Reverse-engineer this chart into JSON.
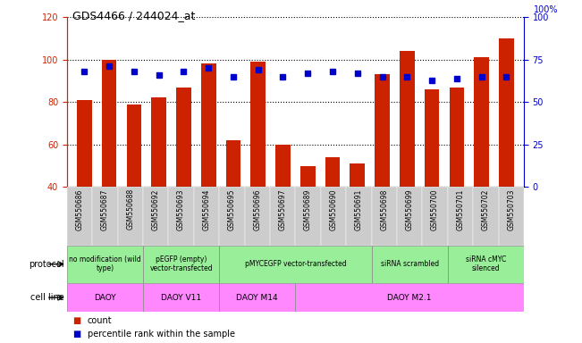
{
  "title": "GDS4466 / 244024_at",
  "samples": [
    "GSM550686",
    "GSM550687",
    "GSM550688",
    "GSM550692",
    "GSM550693",
    "GSM550694",
    "GSM550695",
    "GSM550696",
    "GSM550697",
    "GSM550689",
    "GSM550690",
    "GSM550691",
    "GSM550698",
    "GSM550699",
    "GSM550700",
    "GSM550701",
    "GSM550702",
    "GSM550703"
  ],
  "counts": [
    81,
    100,
    79,
    82,
    87,
    98,
    62,
    99,
    60,
    50,
    54,
    51,
    93,
    104,
    86,
    87,
    101,
    110
  ],
  "percentiles": [
    68,
    71,
    68,
    66,
    68,
    70,
    65,
    69,
    65,
    67,
    68,
    67,
    65,
    65,
    63,
    64,
    65,
    65
  ],
  "ylim_left": [
    40,
    120
  ],
  "ylim_right": [
    0,
    100
  ],
  "yticks_left": [
    40,
    60,
    80,
    100,
    120
  ],
  "yticks_right": [
    0,
    25,
    50,
    75,
    100
  ],
  "bar_color": "#cc2200",
  "dot_color": "#0000cc",
  "protocol_groups": [
    {
      "label": "no modification (wild\ntype)",
      "start": 0,
      "end": 3
    },
    {
      "label": "pEGFP (empty)\nvector-transfected",
      "start": 3,
      "end": 6
    },
    {
      "label": "pMYCEGFP vector-transfected",
      "start": 6,
      "end": 12
    },
    {
      "label": "siRNA scrambled",
      "start": 12,
      "end": 15
    },
    {
      "label": "siRNA cMYC\nsilenced",
      "start": 15,
      "end": 18
    }
  ],
  "cell_line_groups": [
    {
      "label": "DAOY",
      "start": 0,
      "end": 3
    },
    {
      "label": "DAOY V11",
      "start": 3,
      "end": 6
    },
    {
      "label": "DAOY M14",
      "start": 6,
      "end": 9
    },
    {
      "label": "DAOY M2.1",
      "start": 9,
      "end": 18
    }
  ],
  "protocol_row_label": "protocol",
  "cell_line_row_label": "cell line",
  "legend_count_label": "count",
  "legend_pct_label": "percentile rank within the sample",
  "left_axis_color": "#cc2200",
  "right_axis_color": "#0000cc",
  "protocol_bg": "#99ee99",
  "cell_line_bg": "#ff88ff",
  "tick_label_bg": "#dddddd",
  "right_axis_label": "100%"
}
